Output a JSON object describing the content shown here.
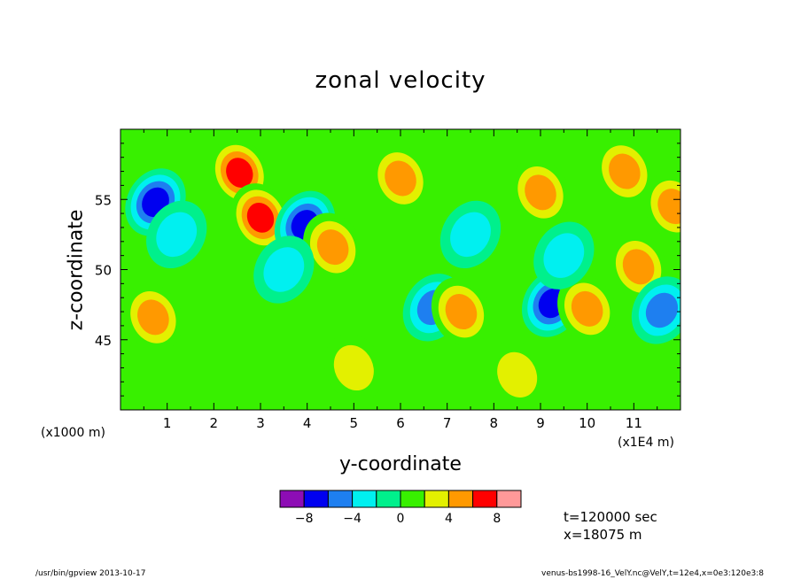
{
  "chart_data": {
    "type": "heatmap",
    "title": "zonal velocity",
    "xlabel": "y-coordinate",
    "ylabel": "z-coordinate",
    "x_scale_note": "(x1E4 m)",
    "y_scale_note": "(x1000 m)",
    "x_ticks": [
      1,
      2,
      3,
      4,
      5,
      6,
      7,
      8,
      9,
      10,
      11
    ],
    "y_ticks": [
      45,
      50,
      55
    ],
    "xlim": [
      0,
      12
    ],
    "ylim": [
      40,
      60
    ],
    "colorbar": {
      "colors": [
        "#8d0db5",
        "#0000f0",
        "#1e7ff0",
        "#00f0f0",
        "#00f08c",
        "#38f000",
        "#e3f000",
        "#ff9900",
        "#ff0000",
        "#ff9999"
      ],
      "tick_labels": [
        "-8",
        "-4",
        "0",
        "4",
        "8"
      ]
    },
    "features": [
      {
        "x": 0.75,
        "z": 54.8,
        "value": -6
      },
      {
        "x": 2.55,
        "z": 56.9,
        "value": 5
      },
      {
        "x": 3.0,
        "z": 53.7,
        "value": 6
      },
      {
        "x": 3.95,
        "z": 53.2,
        "value": -6
      },
      {
        "x": 4.55,
        "z": 51.6,
        "value": 3
      },
      {
        "x": 0.7,
        "z": 46.6,
        "value": 3
      },
      {
        "x": 6.0,
        "z": 56.5,
        "value": 3
      },
      {
        "x": 6.7,
        "z": 47.3,
        "value": -4
      },
      {
        "x": 7.3,
        "z": 47.0,
        "value": 4
      },
      {
        "x": 9.0,
        "z": 55.5,
        "value": 4
      },
      {
        "x": 9.25,
        "z": 47.6,
        "value": -6
      },
      {
        "x": 10.0,
        "z": 47.2,
        "value": 3
      },
      {
        "x": 10.8,
        "z": 57.0,
        "value": 3
      },
      {
        "x": 11.1,
        "z": 50.2,
        "value": 3
      },
      {
        "x": 11.85,
        "z": 54.5,
        "value": 4
      },
      {
        "x": 11.6,
        "z": 47.1,
        "value": -4
      },
      {
        "x": 1.2,
        "z": 52.5,
        "value": -2
      },
      {
        "x": 3.5,
        "z": 50.0,
        "value": -2
      },
      {
        "x": 7.5,
        "z": 52.5,
        "value": -2
      },
      {
        "x": 9.5,
        "z": 51.0,
        "value": -2
      },
      {
        "x": 5.0,
        "z": 43.0,
        "value": 1
      },
      {
        "x": 8.5,
        "z": 42.5,
        "value": 1
      }
    ]
  },
  "annotations": {
    "time": "t=120000 sec",
    "position": "x=18075 m"
  },
  "footer": {
    "left": "/usr/bin/gpview  2013-10-17",
    "right": "venus-bs1998-16_VelY.nc@VelY,t=12e4,x=0e3:120e3:8"
  }
}
